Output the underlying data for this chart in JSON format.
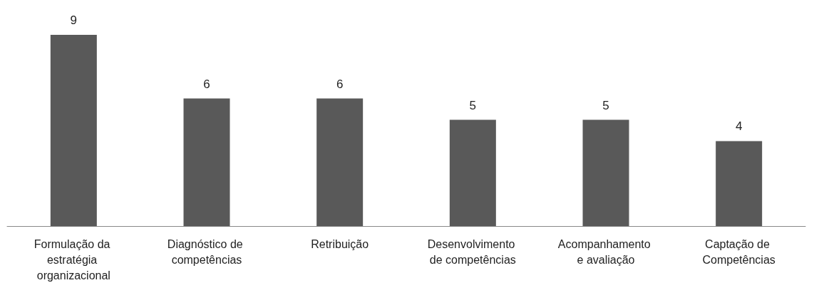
{
  "chart_data": {
    "type": "bar",
    "categories": [
      "Formulação da estratégia organizacional",
      "Diagnóstico de competências",
      "Retribuição",
      "Desenvolvimento de competências",
      "Acompanhamento e avaliação",
      "Captação de Competências"
    ],
    "values": [
      9,
      6,
      6,
      5,
      5,
      4
    ],
    "color": "#595959",
    "data_labels": true
  }
}
